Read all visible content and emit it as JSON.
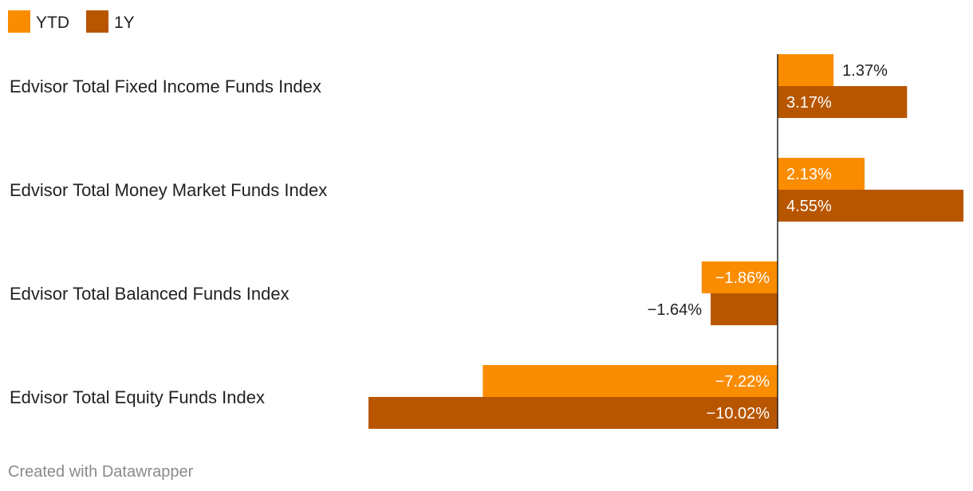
{
  "chart_data": {
    "type": "bar",
    "orientation": "horizontal",
    "grouped": true,
    "categories": [
      "Edvisor Total Fixed Income Funds Index",
      "Edvisor Total Money Market Funds Index",
      "Edvisor Total Balanced Funds Index",
      "Edvisor Total Equity Funds Index"
    ],
    "series": [
      {
        "name": "YTD",
        "color": "#fa8c00",
        "values": [
          1.37,
          2.13,
          -1.86,
          -7.22
        ],
        "labels": [
          "1.37%",
          "2.13%",
          "−1.86%",
          "−7.22%"
        ]
      },
      {
        "name": "1Y",
        "color": "#b85600",
        "values": [
          3.17,
          4.55,
          -1.64,
          -10.02
        ],
        "labels": [
          "3.17%",
          "4.55%",
          "−1.64%",
          "−10.02%"
        ]
      }
    ],
    "xlim": [
      -10.02,
      4.55
    ],
    "legend_position": "top-left",
    "grid": false,
    "zero_line": true
  },
  "footer": {
    "credit": "Created with Datawrapper"
  }
}
